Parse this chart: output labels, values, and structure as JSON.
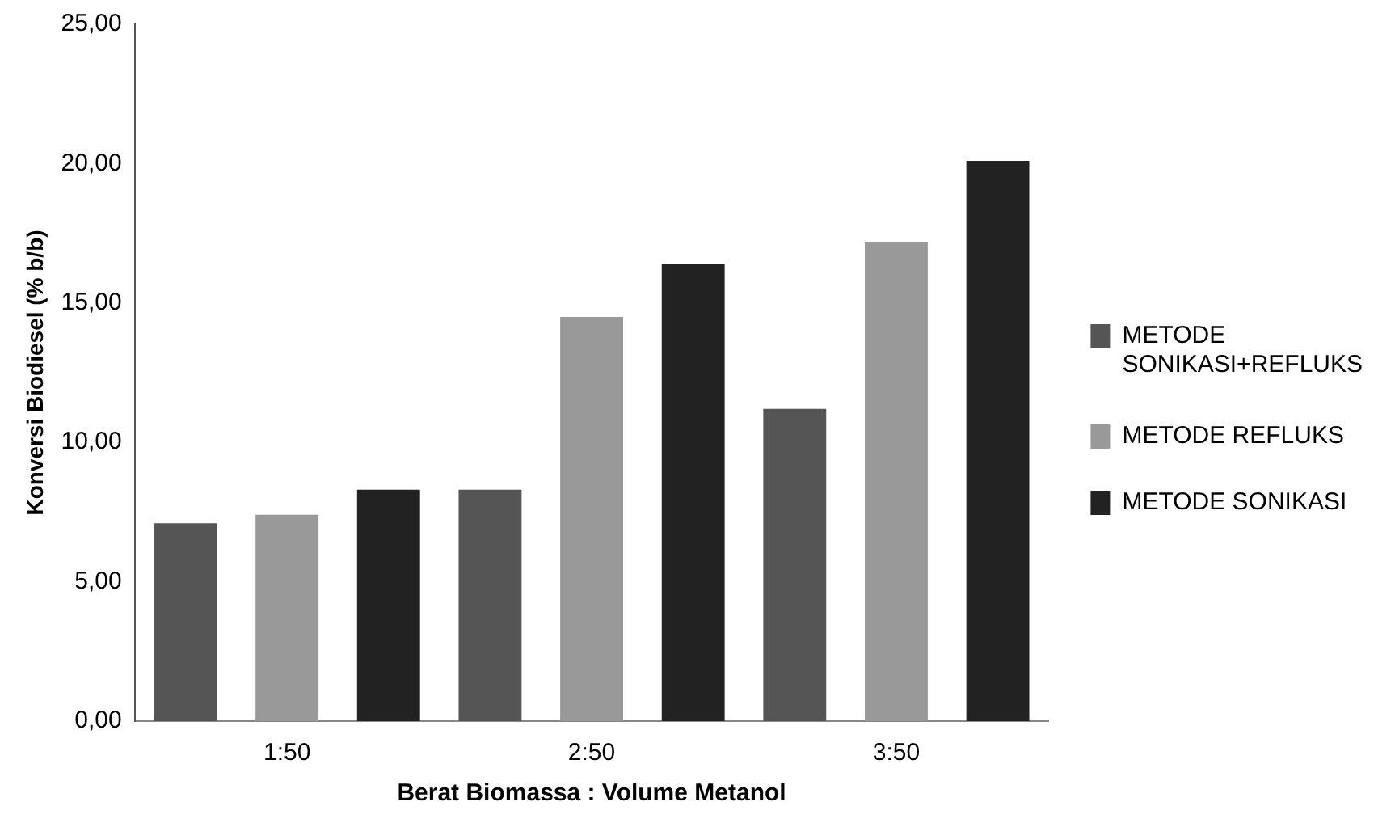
{
  "chart_data": {
    "type": "bar",
    "xlabel": "Berat Biomassa : Volume Metanol",
    "ylabel": "Konversi Biodiesel (% b/b)",
    "categories": [
      "1:50",
      "2:50",
      "3:50"
    ],
    "series": [
      {
        "name": "METODE SONIKASI+REFLUKS",
        "color": "#555555",
        "values": [
          7.1,
          8.3,
          11.2
        ]
      },
      {
        "name": "METODE REFLUKS",
        "color": "#999999",
        "values": [
          7.4,
          14.5,
          17.2
        ]
      },
      {
        "name": "METODE SONIKASI",
        "color": "#222222",
        "values": [
          8.3,
          16.4,
          20.1
        ]
      }
    ],
    "ylim": [
      0,
      25
    ],
    "yticks": [
      {
        "value": 0,
        "label": "0,00"
      },
      {
        "value": 5,
        "label": "5,00"
      },
      {
        "value": 10,
        "label": "10,00"
      },
      {
        "value": 15,
        "label": "15,00"
      },
      {
        "value": 20,
        "label": "20,00"
      },
      {
        "value": 25,
        "label": "25,00"
      }
    ],
    "grid": false,
    "legend": "right"
  }
}
